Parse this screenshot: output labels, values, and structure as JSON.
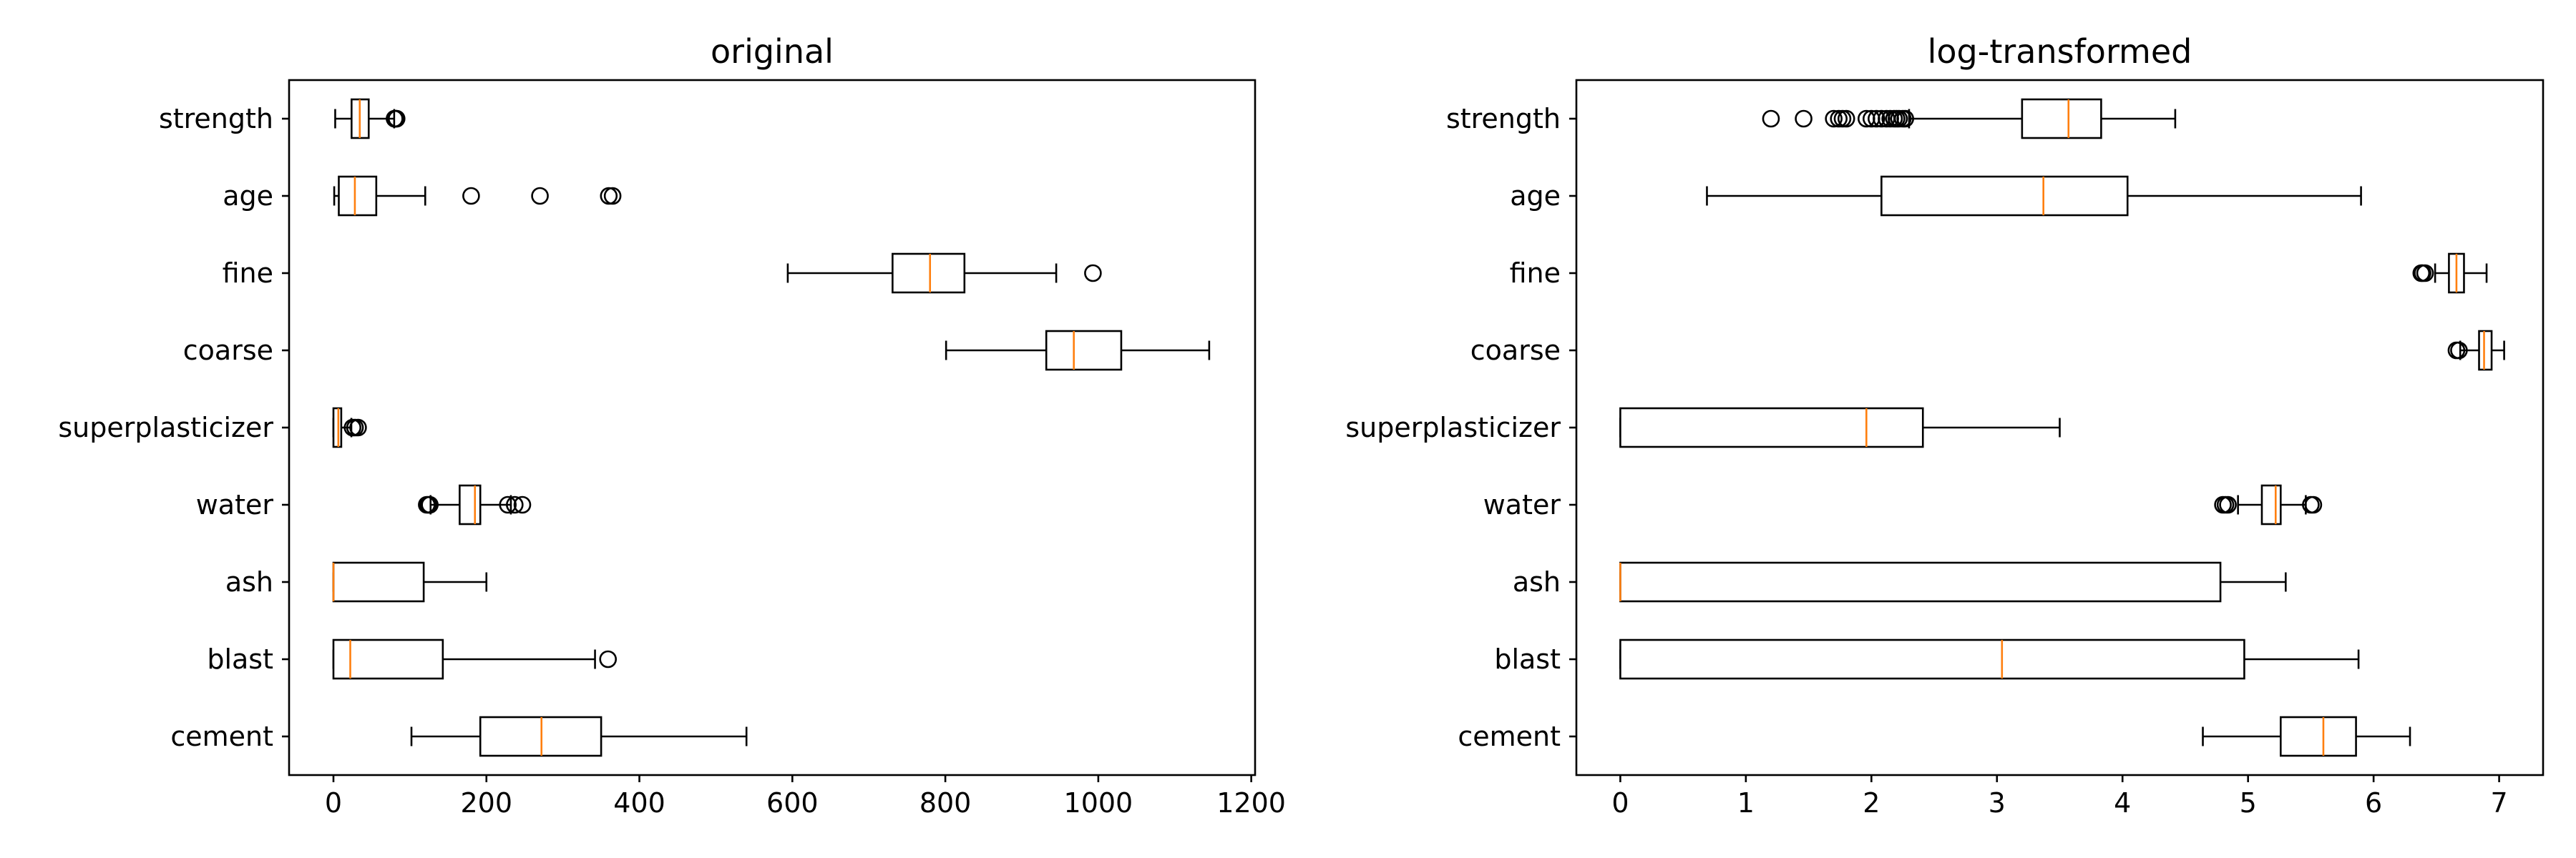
{
  "chart_data": [
    {
      "type": "boxplot",
      "title": "original",
      "orientation": "horizontal",
      "xlim": [
        -58,
        1205
      ],
      "xticks": [
        0,
        200,
        400,
        600,
        800,
        1000,
        1200
      ],
      "categories": [
        "cement",
        "blast",
        "ash",
        "water",
        "superplasticizer",
        "coarse",
        "fine",
        "age",
        "strength"
      ],
      "boxes": [
        {
          "name": "cement",
          "whislo": 102,
          "q1": 192,
          "med": 272,
          "q3": 350,
          "whishi": 540,
          "fliers": []
        },
        {
          "name": "blast",
          "whislo": 0,
          "q1": 0,
          "med": 22,
          "q3": 143,
          "whishi": 342,
          "fliers": [
            359
          ]
        },
        {
          "name": "ash",
          "whislo": 0,
          "q1": 0,
          "med": 0,
          "q3": 118,
          "whishi": 200,
          "fliers": []
        },
        {
          "name": "water",
          "whislo": 127,
          "q1": 165,
          "med": 185,
          "q3": 192,
          "whishi": 232,
          "fliers": [
            122,
            124,
            126,
            228,
            237,
            247
          ]
        },
        {
          "name": "superplasticizer",
          "whislo": 0,
          "q1": 0,
          "med": 6.4,
          "q3": 10.2,
          "whishi": 23.4,
          "fliers": [
            25,
            28.2,
            32.2
          ]
        },
        {
          "name": "coarse",
          "whislo": 801,
          "q1": 932,
          "med": 968,
          "q3": 1030,
          "whishi": 1145,
          "fliers": []
        },
        {
          "name": "fine",
          "whislo": 594,
          "q1": 731,
          "med": 780,
          "q3": 825,
          "whishi": 945,
          "fliers": [
            993
          ]
        },
        {
          "name": "age",
          "whislo": 1,
          "q1": 7,
          "med": 28,
          "q3": 56,
          "whishi": 120,
          "fliers": [
            180,
            270,
            360,
            365
          ]
        },
        {
          "name": "strength",
          "whislo": 2.3,
          "q1": 23.7,
          "med": 34.4,
          "q3": 46.1,
          "whishi": 79.4,
          "fliers": [
            79.9,
            80.2,
            81.8,
            82.6
          ]
        }
      ]
    },
    {
      "type": "boxplot",
      "title": "log-transformed",
      "orientation": "horizontal",
      "xlim": [
        -0.35,
        7.35
      ],
      "xticks": [
        0,
        1,
        2,
        3,
        4,
        5,
        6,
        7
      ],
      "categories": [
        "cement",
        "blast",
        "ash",
        "water",
        "superplasticizer",
        "coarse",
        "fine",
        "age",
        "strength"
      ],
      "boxes": [
        {
          "name": "cement",
          "whislo": 4.64,
          "q1": 5.26,
          "med": 5.6,
          "q3": 5.86,
          "whishi": 6.29,
          "fliers": []
        },
        {
          "name": "blast",
          "whislo": 0,
          "q1": 0,
          "med": 3.04,
          "q3": 4.97,
          "whishi": 5.88,
          "fliers": []
        },
        {
          "name": "ash",
          "whislo": 0,
          "q1": 0,
          "med": 0,
          "q3": 4.78,
          "whishi": 5.3,
          "fliers": []
        },
        {
          "name": "water",
          "whislo": 4.92,
          "q1": 5.11,
          "med": 5.22,
          "q3": 5.26,
          "whishi": 5.46,
          "fliers": [
            4.8,
            4.82,
            4.84,
            5.5,
            5.52
          ]
        },
        {
          "name": "superplasticizer",
          "whislo": 0,
          "q1": 0,
          "med": 1.96,
          "q3": 2.41,
          "whishi": 3.5,
          "fliers": []
        },
        {
          "name": "coarse",
          "whislo": 6.69,
          "q1": 6.84,
          "med": 6.88,
          "q3": 6.94,
          "whishi": 7.04,
          "fliers": [
            6.66,
            6.68
          ]
        },
        {
          "name": "fine",
          "whislo": 6.49,
          "q1": 6.6,
          "med": 6.66,
          "q3": 6.72,
          "whishi": 6.9,
          "fliers": [
            6.38,
            6.39,
            6.41
          ]
        },
        {
          "name": "age",
          "whislo": 0.69,
          "q1": 2.08,
          "med": 3.37,
          "q3": 4.04,
          "whishi": 5.9,
          "fliers": []
        },
        {
          "name": "strength",
          "whislo": 2.3,
          "q1": 3.2,
          "med": 3.57,
          "q3": 3.83,
          "whishi": 4.42,
          "fliers": [
            1.2,
            1.46,
            1.7,
            1.74,
            1.77,
            1.8,
            1.96,
            2.0,
            2.04,
            2.08,
            2.12,
            2.15,
            2.18,
            2.2,
            2.22,
            2.25,
            2.27
          ]
        }
      ]
    }
  ]
}
